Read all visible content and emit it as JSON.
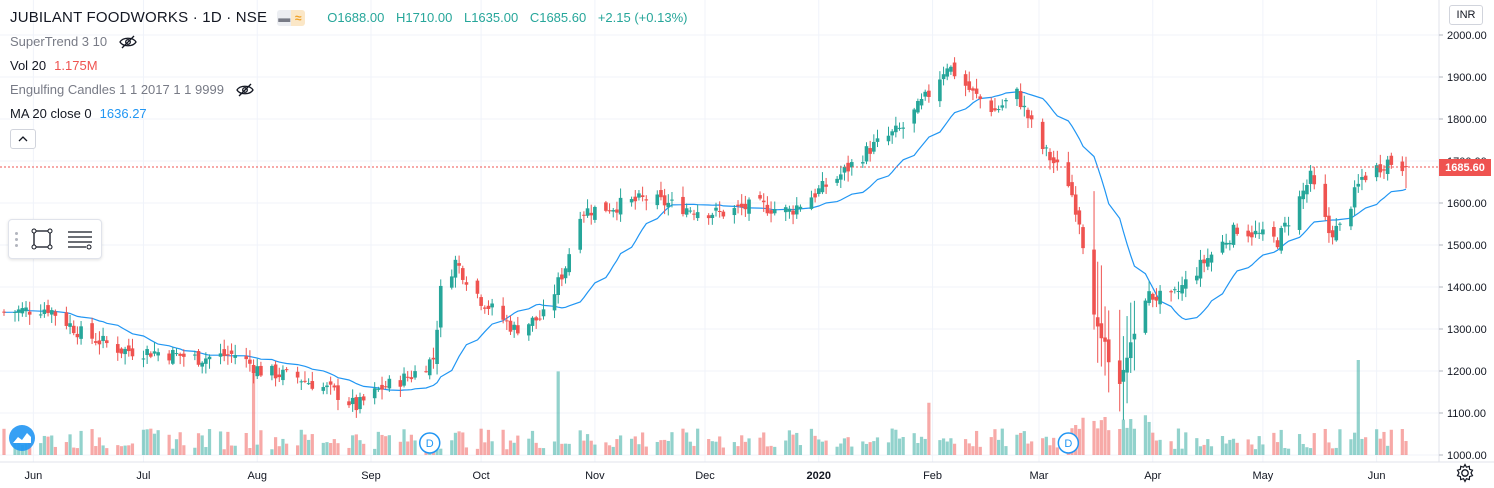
{
  "header": {
    "symbol": "JUBILANT FOODWORKS · 1D · NSE",
    "open": "O1688.00",
    "high": "H1710.00",
    "low": "L1635.00",
    "close": "C1685.60",
    "change": "+2.15 (+0.13%)"
  },
  "indicators": [
    {
      "name": "SuperTrend 3 10",
      "value": "",
      "icon": "eye-off-icon"
    },
    {
      "name": "Vol 20",
      "value": "1.175M",
      "color": "#ef5350"
    },
    {
      "name": "Engulfing Candles 1 1 2017 1 1 9999",
      "value": "",
      "icon": "eye-off-icon"
    },
    {
      "name": "MA 20 close 0",
      "value": "1636.27",
      "color": "#2196f3"
    }
  ],
  "currency": "INR",
  "last_price": "1685.60",
  "colors": {
    "up": "#26a69a",
    "down": "#ef5350",
    "ma": "#2196f3",
    "grid": "#f0f3fa",
    "axis_text": "#131722"
  },
  "chart_data": {
    "type": "candlestick",
    "ylim": [
      1000,
      2000
    ],
    "y_ticks": [
      "1000.00",
      "1100.00",
      "1200.00",
      "1300.00",
      "1400.00",
      "1500.00",
      "1600.00",
      "1700.00",
      "1800.00",
      "1900.00",
      "2000.00"
    ],
    "x_labels": [
      {
        "label": "Jun",
        "date": "2019-06-01"
      },
      {
        "label": "Jul",
        "date": "2019-07-01"
      },
      {
        "label": "Aug",
        "date": "2019-08-01"
      },
      {
        "label": "Sep",
        "date": "2019-09-01"
      },
      {
        "label": "Oct",
        "date": "2019-10-01"
      },
      {
        "label": "Nov",
        "date": "2019-11-01"
      },
      {
        "label": "Dec",
        "date": "2019-12-01"
      },
      {
        "label": "2020",
        "date": "2020-01-01"
      },
      {
        "label": "Feb",
        "date": "2020-02-01"
      },
      {
        "label": "Mar",
        "date": "2020-03-01"
      },
      {
        "label": "Apr",
        "date": "2020-04-01"
      },
      {
        "label": "May",
        "date": "2020-05-01"
      },
      {
        "label": "Jun",
        "date": "2020-06-01"
      }
    ],
    "date_range": [
      "2019-05-24",
      "2020-06-09"
    ],
    "anchor_closes": [
      [
        "2019-05-24",
        1340
      ],
      [
        "2019-06-05",
        1350
      ],
      [
        "2019-06-14",
        1290
      ],
      [
        "2019-06-25",
        1250
      ],
      [
        "2019-07-05",
        1245
      ],
      [
        "2019-07-16",
        1230
      ],
      [
        "2019-07-26",
        1240
      ],
      [
        "2019-08-02",
        1200
      ],
      [
        "2019-08-12",
        1185
      ],
      [
        "2019-08-22",
        1150
      ],
      [
        "2019-08-28",
        1115
      ],
      [
        "2019-09-04",
        1160
      ],
      [
        "2019-09-12",
        1190
      ],
      [
        "2019-09-18",
        1230
      ],
      [
        "2019-09-20",
        1390
      ],
      [
        "2019-09-24",
        1460
      ],
      [
        "2019-10-01",
        1370
      ],
      [
        "2019-10-10",
        1300
      ],
      [
        "2019-10-18",
        1330
      ],
      [
        "2019-10-24",
        1450
      ],
      [
        "2019-10-28",
        1580
      ],
      [
        "2019-11-05",
        1590
      ],
      [
        "2019-11-15",
        1610
      ],
      [
        "2019-11-25",
        1590
      ],
      [
        "2019-12-05",
        1575
      ],
      [
        "2019-12-15",
        1595
      ],
      [
        "2019-12-24",
        1580
      ],
      [
        "2020-01-06",
        1660
      ],
      [
        "2020-01-15",
        1730
      ],
      [
        "2020-01-24",
        1780
      ],
      [
        "2020-01-31",
        1860
      ],
      [
        "2020-02-05",
        1930
      ],
      [
        "2020-02-12",
        1860
      ],
      [
        "2020-02-18",
        1820
      ],
      [
        "2020-02-24",
        1860
      ],
      [
        "2020-03-02",
        1730
      ],
      [
        "2020-03-09",
        1650
      ],
      [
        "2020-03-12",
        1560
      ],
      [
        "2020-03-17",
        1300
      ],
      [
        "2020-03-23",
        1160
      ],
      [
        "2020-03-30",
        1380
      ],
      [
        "2020-04-06",
        1370
      ],
      [
        "2020-04-15",
        1460
      ],
      [
        "2020-04-24",
        1540
      ],
      [
        "2020-05-05",
        1510
      ],
      [
        "2020-05-14",
        1660
      ],
      [
        "2020-05-19",
        1530
      ],
      [
        "2020-05-22",
        1540
      ],
      [
        "2020-05-28",
        1660
      ],
      [
        "2020-06-04",
        1700
      ],
      [
        "2020-06-09",
        1685.6
      ]
    ],
    "ma_20_last": 1636.27,
    "volume_last": "1.175M",
    "volume_spikes": [
      [
        "2019-07-31",
        0.88
      ],
      [
        "2019-10-22",
        0.88
      ],
      [
        "2020-01-31",
        0.55
      ],
      [
        "2020-03-19",
        0.4
      ],
      [
        "2020-05-27",
        1.0
      ]
    ],
    "dividend_markers": [
      {
        "label": "D",
        "date": "2019-09-17"
      },
      {
        "label": "D",
        "date": "2020-03-09"
      }
    ]
  }
}
